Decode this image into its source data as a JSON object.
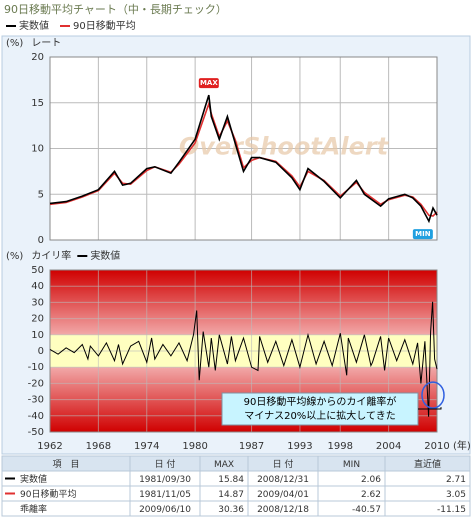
{
  "title": "90日移動平均チャート（中・長期チェック）",
  "chart_data": [
    {
      "type": "line",
      "y_unit": "(%)",
      "y_label": "レート",
      "max_label": "MAX",
      "min_label": "MIN",
      "watermark": "OverShootAlert",
      "x": [
        1962,
        1964,
        1966,
        1968,
        1970,
        1971,
        1972,
        1974,
        1975,
        1977,
        1978,
        1980,
        1981.7,
        1982,
        1983,
        1984,
        1985,
        1986,
        1987,
        1988,
        1990,
        1992,
        1993,
        1994,
        1996,
        1998,
        2000,
        2001,
        2003,
        2004,
        2006,
        2007,
        2008,
        2008.99,
        2009.5,
        2010
      ],
      "series": [
        {
          "name": "実数値",
          "color": "#000000",
          "values": [
            4.0,
            4.2,
            4.8,
            5.5,
            7.5,
            6.0,
            6.2,
            7.8,
            8.0,
            7.3,
            8.5,
            11.0,
            15.84,
            13.5,
            11.0,
            13.5,
            10.5,
            7.5,
            9.0,
            9.0,
            8.5,
            6.8,
            5.5,
            7.8,
            6.4,
            4.6,
            6.5,
            5.0,
            3.7,
            4.5,
            5.0,
            4.6,
            3.7,
            2.06,
            3.5,
            2.71
          ]
        },
        {
          "name": "90日移動平均",
          "color": "#e03030",
          "values": [
            3.9,
            4.1,
            4.7,
            5.4,
            7.3,
            6.2,
            6.1,
            7.6,
            8.0,
            7.4,
            8.3,
            10.6,
            14.87,
            13.8,
            11.3,
            13.0,
            10.9,
            7.9,
            8.7,
            9.0,
            8.6,
            7.0,
            5.8,
            7.5,
            6.5,
            4.8,
            6.3,
            5.2,
            3.9,
            4.4,
            4.9,
            4.7,
            3.9,
            2.7,
            2.62,
            3.05
          ]
        }
      ],
      "xlim": [
        1962,
        2010
      ],
      "xticks": [
        1962,
        1968,
        1974,
        1980,
        1987,
        1993,
        1998,
        2004,
        2010
      ],
      "ylim": [
        0,
        20
      ],
      "yticks": [
        0,
        5,
        10,
        15,
        20
      ],
      "grid": true
    },
    {
      "type": "line",
      "y_unit": "(%)",
      "y_label": "カイリ率",
      "x_unit": "(年)",
      "annotation": [
        "90日移動平均線からのカイ離率が",
        "マイナス20%以上に拡大してきた"
      ],
      "x": [
        1962,
        1963,
        1964,
        1965,
        1966,
        1966.7,
        1967,
        1968,
        1969,
        1970,
        1970.5,
        1971,
        1972,
        1973,
        1974,
        1974.6,
        1975,
        1976,
        1977,
        1978,
        1979,
        1979.8,
        1980.2,
        1980.5,
        1981,
        1981.7,
        1982,
        1982.5,
        1983,
        1984,
        1984.5,
        1985,
        1986,
        1987,
        1987.8,
        1988,
        1989,
        1990,
        1991,
        1992,
        1993,
        1994,
        1995,
        1996,
        1997,
        1998,
        1998.8,
        1999,
        2000,
        2001,
        2001.8,
        2002,
        2003,
        2003.5,
        2004,
        2005,
        2006,
        2007,
        2007.6,
        2008,
        2008.5,
        2008.96,
        2009.2,
        2009.45,
        2009.7,
        2010
      ],
      "series": [
        {
          "name": "実数値",
          "color": "#000000",
          "values": [
            1,
            -2,
            2,
            -1,
            4,
            -5,
            3,
            -3,
            5,
            -6,
            4,
            -8,
            3,
            6,
            -7,
            8,
            -5,
            4,
            -3,
            5,
            -6,
            10,
            25,
            -18,
            12,
            -10,
            8,
            -12,
            10,
            -8,
            9,
            -6,
            8,
            -10,
            -12,
            9,
            -7,
            6,
            -9,
            7,
            -10,
            10,
            -8,
            6,
            -9,
            11,
            -15,
            8,
            -7,
            10,
            -9,
            -7,
            9,
            -12,
            8,
            -6,
            7,
            -8,
            5,
            -20,
            6,
            -40.57,
            12,
            30.36,
            -5,
            -11.15
          ]
        }
      ],
      "band": [
        -10,
        10
      ],
      "xlim": [
        1962,
        2010
      ],
      "xticks": [
        1962,
        1968,
        1974,
        1980,
        1987,
        1993,
        1998,
        2004,
        2010
      ],
      "ylim": [
        -50,
        50
      ],
      "yticks": [
        -50,
        -40,
        -30,
        -20,
        -10,
        0,
        10,
        20,
        30,
        40,
        50
      ],
      "grid": true
    }
  ],
  "table": {
    "header": [
      "項　目",
      "日 付",
      "MAX",
      "日 付",
      "MIN",
      "直近値"
    ],
    "rows": [
      [
        "実数値",
        "1981/09/30",
        15.84,
        "2008/12/31",
        2.06,
        2.71
      ],
      [
        "90日移動平均",
        "1981/11/05",
        14.87,
        "2009/04/01",
        2.62,
        3.05
      ],
      [
        "乖離率",
        "2009/06/10",
        30.36,
        "2008/12/18",
        -40.57,
        -11.15
      ]
    ]
  }
}
